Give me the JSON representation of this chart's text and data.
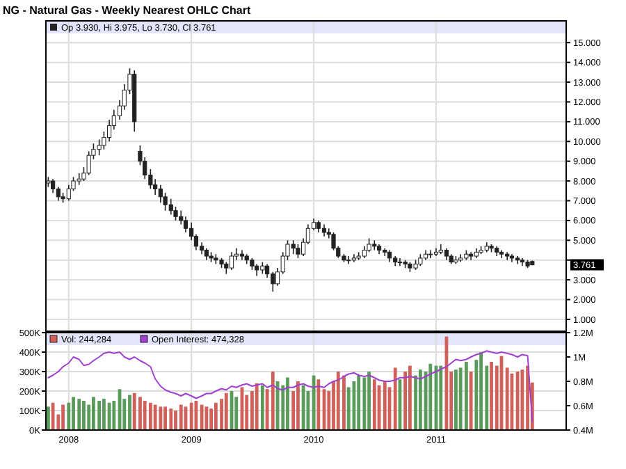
{
  "chart_data": [
    {
      "type": "candlestick",
      "title": "NG - Natural Gas - Weekly Nearest OHLC Chart",
      "color": "#222222",
      "annotations": [
        "Op 3.930, Hi 3.975, Lo 3.730, Cl 3.761",
        {
          "text": "3.761",
          "y": 3.761
        }
      ],
      "x": [
        "2007-11-01",
        "2007-11-15",
        "2007-12-01",
        "2007-12-15",
        "2008-01-01",
        "2008-01-15",
        "2008-02-01",
        "2008-02-15",
        "2008-03-01",
        "2008-03-15",
        "2008-04-01",
        "2008-04-15",
        "2008-05-01",
        "2008-05-15",
        "2008-06-01",
        "2008-06-15",
        "2008-07-01",
        "2008-07-15",
        "2008-08-01",
        "2008-08-15",
        "2008-09-01",
        "2008-09-15",
        "2008-10-01",
        "2008-10-15",
        "2008-11-01",
        "2008-11-15",
        "2008-12-01",
        "2008-12-15",
        "2009-01-01",
        "2009-01-15",
        "2009-02-01",
        "2009-02-15",
        "2009-03-01",
        "2009-03-15",
        "2009-04-01",
        "2009-04-15",
        "2009-05-01",
        "2009-05-15",
        "2009-06-01",
        "2009-06-15",
        "2009-07-01",
        "2009-07-15",
        "2009-08-01",
        "2009-08-15",
        "2009-09-01",
        "2009-09-15",
        "2009-10-01",
        "2009-10-15",
        "2009-11-01",
        "2009-11-15",
        "2009-12-01",
        "2009-12-15",
        "2010-01-01",
        "2010-01-15",
        "2010-02-01",
        "2010-02-15",
        "2010-03-01",
        "2010-03-15",
        "2010-04-01",
        "2010-04-15",
        "2010-05-01",
        "2010-05-15",
        "2010-06-01",
        "2010-06-15",
        "2010-07-01",
        "2010-07-15",
        "2010-08-01",
        "2010-08-15",
        "2010-09-01",
        "2010-09-15",
        "2010-10-01",
        "2010-10-15",
        "2010-11-01",
        "2010-11-15",
        "2010-12-01",
        "2010-12-15",
        "2011-01-01",
        "2011-01-15",
        "2011-02-01",
        "2011-02-15",
        "2011-03-01",
        "2011-03-15",
        "2011-04-01",
        "2011-04-15",
        "2011-05-01",
        "2011-05-15",
        "2011-06-01",
        "2011-06-15",
        "2011-07-01",
        "2011-07-15",
        "2011-08-01",
        "2011-08-15",
        "2011-09-01",
        "2011-09-15",
        "2011-10-01",
        "2011-10-15"
      ],
      "ohlc": [
        [
          7.9,
          8.2,
          7.7,
          8.0
        ],
        [
          8.0,
          8.1,
          7.4,
          7.6
        ],
        [
          7.6,
          7.7,
          7.0,
          7.2
        ],
        [
          7.2,
          7.4,
          6.9,
          7.1
        ],
        [
          7.1,
          7.8,
          7.0,
          7.6
        ],
        [
          7.6,
          8.2,
          7.5,
          8.0
        ],
        [
          8.0,
          8.4,
          7.8,
          8.1
        ],
        [
          8.1,
          8.7,
          8.0,
          8.4
        ],
        [
          8.4,
          9.5,
          8.3,
          9.3
        ],
        [
          9.3,
          9.9,
          9.1,
          9.6
        ],
        [
          9.6,
          10.1,
          9.3,
          9.8
        ],
        [
          9.8,
          10.5,
          9.6,
          10.2
        ],
        [
          10.2,
          11.1,
          10.0,
          10.8
        ],
        [
          10.8,
          11.6,
          10.6,
          11.3
        ],
        [
          11.3,
          12.1,
          11.1,
          11.8
        ],
        [
          11.8,
          12.9,
          11.6,
          12.6
        ],
        [
          12.6,
          13.7,
          12.4,
          13.4
        ],
        [
          13.4,
          13.6,
          10.5,
          11.0
        ],
        [
          9.5,
          9.8,
          8.8,
          9.0
        ],
        [
          9.0,
          9.2,
          8.1,
          8.3
        ],
        [
          8.3,
          8.6,
          7.6,
          7.8
        ],
        [
          7.8,
          8.1,
          7.3,
          7.6
        ],
        [
          7.6,
          7.8,
          6.9,
          7.2
        ],
        [
          7.2,
          7.4,
          6.5,
          6.8
        ],
        [
          6.8,
          7.1,
          6.3,
          6.5
        ],
        [
          6.5,
          6.7,
          6.0,
          6.2
        ],
        [
          6.2,
          6.5,
          5.8,
          6.0
        ],
        [
          6.0,
          6.2,
          5.4,
          5.6
        ],
        [
          5.6,
          5.9,
          5.0,
          5.2
        ],
        [
          5.2,
          5.3,
          4.5,
          4.7
        ],
        [
          4.7,
          4.9,
          4.3,
          4.5
        ],
        [
          4.5,
          4.6,
          4.0,
          4.2
        ],
        [
          4.2,
          4.4,
          3.9,
          4.1
        ],
        [
          4.1,
          4.3,
          3.8,
          4.0
        ],
        [
          4.0,
          4.1,
          3.6,
          3.8
        ],
        [
          3.8,
          3.9,
          3.3,
          3.6
        ],
        [
          3.6,
          4.4,
          3.5,
          4.2
        ],
        [
          4.2,
          4.6,
          4.0,
          4.3
        ],
        [
          4.3,
          4.5,
          4.0,
          4.2
        ],
        [
          4.2,
          4.3,
          3.8,
          4.0
        ],
        [
          4.0,
          4.1,
          3.5,
          3.7
        ],
        [
          3.7,
          3.8,
          3.2,
          3.5
        ],
        [
          3.5,
          3.9,
          3.3,
          3.7
        ],
        [
          3.7,
          3.8,
          3.1,
          3.3
        ],
        [
          3.3,
          3.4,
          2.4,
          2.8
        ],
        [
          2.8,
          3.6,
          2.7,
          3.4
        ],
        [
          3.4,
          4.4,
          3.3,
          4.2
        ],
        [
          4.2,
          5.0,
          4.0,
          4.8
        ],
        [
          4.8,
          5.0,
          4.3,
          4.6
        ],
        [
          4.6,
          4.8,
          4.1,
          4.3
        ],
        [
          4.3,
          5.1,
          4.2,
          4.9
        ],
        [
          4.9,
          5.8,
          4.8,
          5.6
        ],
        [
          5.6,
          6.1,
          5.5,
          5.9
        ],
        [
          5.9,
          6.0,
          5.4,
          5.6
        ],
        [
          5.6,
          5.8,
          5.2,
          5.4
        ],
        [
          5.4,
          5.6,
          5.1,
          5.3
        ],
        [
          5.3,
          5.4,
          4.5,
          4.6
        ],
        [
          4.6,
          4.7,
          4.1,
          4.2
        ],
        [
          4.2,
          4.3,
          3.9,
          4.0
        ],
        [
          4.0,
          4.2,
          3.8,
          4.0
        ],
        [
          4.0,
          4.3,
          3.9,
          4.1
        ],
        [
          4.1,
          4.4,
          4.0,
          4.2
        ],
        [
          4.2,
          4.7,
          4.1,
          4.5
        ],
        [
          4.5,
          5.1,
          4.4,
          4.8
        ],
        [
          4.8,
          5.0,
          4.5,
          4.7
        ],
        [
          4.7,
          4.8,
          4.3,
          4.5
        ],
        [
          4.5,
          4.6,
          4.2,
          4.4
        ],
        [
          4.4,
          4.5,
          3.9,
          4.1
        ],
        [
          4.1,
          4.2,
          3.7,
          3.9
        ],
        [
          3.9,
          4.1,
          3.7,
          3.9
        ],
        [
          3.9,
          4.0,
          3.6,
          3.8
        ],
        [
          3.8,
          3.9,
          3.4,
          3.6
        ],
        [
          3.6,
          4.0,
          3.5,
          3.8
        ],
        [
          3.8,
          4.3,
          3.7,
          4.1
        ],
        [
          4.1,
          4.5,
          4.0,
          4.3
        ],
        [
          4.3,
          4.5,
          4.1,
          4.3
        ],
        [
          4.3,
          4.6,
          4.2,
          4.4
        ],
        [
          4.4,
          4.8,
          4.3,
          4.5
        ],
        [
          4.5,
          4.6,
          4.0,
          4.2
        ],
        [
          4.2,
          4.3,
          3.8,
          3.9
        ],
        [
          3.9,
          4.2,
          3.8,
          4.0
        ],
        [
          4.0,
          4.3,
          3.9,
          4.1
        ],
        [
          4.1,
          4.5,
          4.0,
          4.3
        ],
        [
          4.3,
          4.4,
          4.0,
          4.2
        ],
        [
          4.2,
          4.6,
          4.1,
          4.4
        ],
        [
          4.4,
          4.7,
          4.3,
          4.5
        ],
        [
          4.5,
          4.9,
          4.4,
          4.7
        ],
        [
          4.7,
          4.8,
          4.4,
          4.6
        ],
        [
          4.6,
          4.7,
          4.2,
          4.4
        ],
        [
          4.4,
          4.5,
          4.1,
          4.3
        ],
        [
          4.3,
          4.4,
          4.0,
          4.2
        ],
        [
          4.2,
          4.3,
          3.9,
          4.1
        ],
        [
          4.1,
          4.2,
          3.8,
          4.0
        ],
        [
          4.0,
          4.1,
          3.7,
          3.9
        ],
        [
          3.9,
          4.0,
          3.6,
          3.7
        ],
        [
          3.93,
          3.975,
          3.73,
          3.761
        ]
      ],
      "xlim": [
        "2007-10-25",
        "2012-01-24"
      ],
      "xticks": [
        "2008",
        "2009",
        "2010",
        "2011"
      ],
      "ylim": [
        0.4,
        16.1
      ],
      "yticks": [
        {
          "value": 1,
          "label": "1.000"
        },
        {
          "value": 2,
          "label": "2.000"
        },
        {
          "value": 3,
          "label": "3.000"
        },
        {
          "value": 4,
          "label": null
        },
        {
          "value": 5,
          "label": "5.000"
        },
        {
          "value": 6,
          "label": "6.000"
        },
        {
          "value": 7,
          "label": "7.000"
        },
        {
          "value": 8,
          "label": "8.000"
        },
        {
          "value": 9,
          "label": "9.000"
        },
        {
          "value": 10,
          "label": "10.000"
        },
        {
          "value": 11,
          "label": "11.000"
        },
        {
          "value": 12,
          "label": "12.000"
        },
        {
          "value": 13,
          "label": "13.000"
        },
        {
          "value": 14,
          "label": "14.000"
        },
        {
          "value": 15,
          "label": "15.000"
        }
      ],
      "grid": true,
      "tick_labels": "y"
    },
    {
      "type": "bar",
      "x": [
        "2007-11-01",
        "2007-11-15",
        "2007-12-01",
        "2007-12-15",
        "2008-01-01",
        "2008-01-15",
        "2008-02-01",
        "2008-02-15",
        "2008-03-01",
        "2008-03-15",
        "2008-04-01",
        "2008-04-15",
        "2008-05-01",
        "2008-05-15",
        "2008-06-01",
        "2008-06-15",
        "2008-07-01",
        "2008-07-15",
        "2008-08-01",
        "2008-08-15",
        "2008-09-01",
        "2008-09-15",
        "2008-10-01",
        "2008-10-15",
        "2008-11-01",
        "2008-11-15",
        "2008-12-01",
        "2008-12-15",
        "2009-01-01",
        "2009-01-15",
        "2009-02-01",
        "2009-02-15",
        "2009-03-01",
        "2009-03-15",
        "2009-04-01",
        "2009-04-15",
        "2009-05-01",
        "2009-05-15",
        "2009-06-01",
        "2009-06-15",
        "2009-07-01",
        "2009-07-15",
        "2009-08-01",
        "2009-08-15",
        "2009-09-01",
        "2009-09-15",
        "2009-10-01",
        "2009-10-15",
        "2009-11-01",
        "2009-11-15",
        "2009-12-01",
        "2009-12-15",
        "2010-01-01",
        "2010-01-15",
        "2010-02-01",
        "2010-02-15",
        "2010-03-01",
        "2010-03-15",
        "2010-04-01",
        "2010-04-15",
        "2010-05-01",
        "2010-05-15",
        "2010-06-01",
        "2010-06-15",
        "2010-07-01",
        "2010-07-15",
        "2010-08-01",
        "2010-08-15",
        "2010-09-01",
        "2010-09-15",
        "2010-10-01",
        "2010-10-15",
        "2010-11-01",
        "2010-11-15",
        "2010-12-01",
        "2010-12-15",
        "2011-01-01",
        "2011-01-15",
        "2011-02-01",
        "2011-02-15",
        "2011-03-01",
        "2011-03-15",
        "2011-04-01",
        "2011-04-15",
        "2011-05-01",
        "2011-05-15",
        "2011-06-01",
        "2011-06-15",
        "2011-07-01",
        "2011-07-15",
        "2011-08-01",
        "2011-08-15",
        "2011-09-01",
        "2011-09-15",
        "2011-10-01",
        "2011-10-15"
      ],
      "series": [
        {
          "name": "Vol: 244,284",
          "type": "bar",
          "color": "#d0605a",
          "values": [
            120,
            140,
            80,
            130,
            140,
            170,
            160,
            150,
            130,
            170,
            150,
            160,
            140,
            150,
            210,
            160,
            180,
            190,
            170,
            150,
            140,
            130,
            120,
            120,
            110,
            100,
            130,
            120,
            140,
            150,
            130,
            120,
            110,
            140,
            160,
            190,
            200,
            170,
            220,
            180,
            200,
            240,
            230,
            210,
            300,
            250,
            230,
            270,
            200,
            250,
            230,
            200,
            280,
            260,
            210,
            200,
            250,
            300,
            280,
            220,
            250,
            280,
            270,
            300,
            260,
            230,
            250,
            220,
            320,
            260,
            300,
            330,
            280,
            310,
            300,
            340,
            330,
            330,
            480,
            300,
            310,
            320,
            350,
            300,
            360,
            400,
            330,
            350,
            330,
            380,
            320,
            290,
            300,
            310,
            330,
            244
          ],
          "colors": [
            "#5a9a5a",
            "#d0605a",
            "#d0605a",
            "#d0605a",
            "#5a9a5a",
            "#5a9a5a",
            "#5a9a5a",
            "#5a9a5a",
            "#5a9a5a",
            "#5a9a5a",
            "#5a9a5a",
            "#5a9a5a",
            "#5a9a5a",
            "#5a9a5a",
            "#5a9a5a",
            "#5a9a5a",
            "#5a9a5a",
            "#d0605a",
            "#d0605a",
            "#d0605a",
            "#d0605a",
            "#d0605a",
            "#d0605a",
            "#d0605a",
            "#d0605a",
            "#d0605a",
            "#d0605a",
            "#d0605a",
            "#d0605a",
            "#d0605a",
            "#d0605a",
            "#d0605a",
            "#d0605a",
            "#d0605a",
            "#d0605a",
            "#d0605a",
            "#5a9a5a",
            "#5a9a5a",
            "#d0605a",
            "#d0605a",
            "#d0605a",
            "#d0605a",
            "#5a9a5a",
            "#d0605a",
            "#d0605a",
            "#5a9a5a",
            "#5a9a5a",
            "#5a9a5a",
            "#d0605a",
            "#d0605a",
            "#5a9a5a",
            "#5a9a5a",
            "#5a9a5a",
            "#d0605a",
            "#d0605a",
            "#d0605a",
            "#d0605a",
            "#d0605a",
            "#d0605a",
            "#5a9a5a",
            "#5a9a5a",
            "#5a9a5a",
            "#5a9a5a",
            "#5a9a5a",
            "#d0605a",
            "#d0605a",
            "#d0605a",
            "#d0605a",
            "#d0605a",
            "#5a9a5a",
            "#d0605a",
            "#d0605a",
            "#5a9a5a",
            "#5a9a5a",
            "#5a9a5a",
            "#5a9a5a",
            "#5a9a5a",
            "#5a9a5a",
            "#d0605a",
            "#d0605a",
            "#5a9a5a",
            "#5a9a5a",
            "#5a9a5a",
            "#d0605a",
            "#5a9a5a",
            "#5a9a5a",
            "#5a9a5a",
            "#d0605a",
            "#d0605a",
            "#d0605a",
            "#d0605a",
            "#d0605a",
            "#d0605a",
            "#d0605a",
            "#d0605a",
            "#d0605a"
          ]
        },
        {
          "name": "Open Interest: 474,328",
          "type": "line",
          "axis": "y2",
          "color": "#a040d0",
          "values": [
            0.83,
            0.85,
            0.88,
            0.92,
            0.95,
            1.0,
            0.98,
            0.93,
            0.94,
            0.97,
            1.0,
            1.03,
            1.04,
            1.03,
            1.04,
            1.0,
            0.98,
            1.0,
            0.97,
            0.95,
            0.92,
            0.82,
            0.76,
            0.73,
            0.71,
            0.7,
            0.68,
            0.7,
            0.68,
            0.66,
            0.68,
            0.7,
            0.7,
            0.72,
            0.74,
            0.73,
            0.76,
            0.75,
            0.77,
            0.78,
            0.76,
            0.77,
            0.78,
            0.75,
            0.77,
            0.74,
            0.73,
            0.75,
            0.75,
            0.77,
            0.78,
            0.76,
            0.75,
            0.76,
            0.75,
            0.78,
            0.8,
            0.81,
            0.84,
            0.86,
            0.87,
            0.85,
            0.84,
            0.85,
            0.83,
            0.81,
            0.8,
            0.8,
            0.81,
            0.83,
            0.83,
            0.84,
            0.83,
            0.82,
            0.84,
            0.86,
            0.88,
            0.9,
            0.92,
            0.95,
            0.98,
            0.97,
            0.98,
            1.0,
            1.02,
            1.03,
            1.05,
            1.04,
            1.03,
            1.04,
            1.03,
            1.02,
            1.0,
            1.02,
            1.01,
            0.47
          ]
        }
      ],
      "xlim": [
        "2007-10-25",
        "2012-01-24"
      ],
      "xticks": [
        "2008",
        "2009",
        "2010",
        "2011"
      ],
      "ylim": [
        0,
        500
      ],
      "yticks": [
        {
          "value": 0,
          "label": "0K"
        },
        {
          "value": 100,
          "label": "100K"
        },
        {
          "value": 200,
          "label": "200K"
        },
        {
          "value": 300,
          "label": "300K"
        },
        {
          "value": 400,
          "label": "400K"
        },
        {
          "value": 500,
          "label": "500K"
        }
      ],
      "y2lim": [
        0.4,
        1.2
      ],
      "y2ticks": [
        {
          "value": 0.4,
          "label": "0.4M"
        },
        {
          "value": 0.6,
          "label": "0.6M"
        },
        {
          "value": 0.8,
          "label": "0.8M"
        },
        {
          "value": 1,
          "label": "1M"
        },
        {
          "value": 1.2,
          "label": "1.2M"
        }
      ],
      "grid": true,
      "legend": "top left"
    }
  ]
}
